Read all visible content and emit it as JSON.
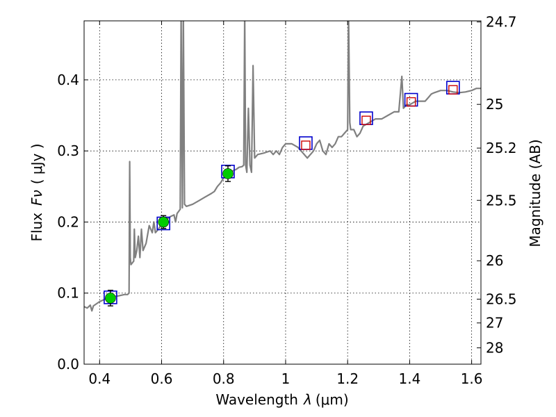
{
  "chart_data": {
    "type": "line",
    "xlabel_main": "Wavelength",
    "xlabel_symbol": "λ",
    "xlabel_unit": "(μm)",
    "ylabel_main": "Flux",
    "ylabel_symbol": "Fν",
    "ylabel_unit": "( μJy )",
    "ylabel_right": "Magnitude (AB)",
    "xlim": [
      0.35,
      1.63
    ],
    "ylim": [
      0.0,
      0.483
    ],
    "x_ticks": [
      0.4,
      0.6,
      0.8,
      1.0,
      1.2,
      1.4,
      1.6
    ],
    "x_tick_labels": [
      "0.4",
      "0.6",
      "0.8",
      "1",
      "1.2",
      "1.4",
      "1.6"
    ],
    "y_ticks": [
      0.0,
      0.1,
      0.2,
      0.3,
      0.4
    ],
    "y_tick_labels": [
      "0.0",
      "0.1",
      "0.2",
      "0.3",
      "0.4"
    ],
    "right_ticks": [
      {
        "label": "24.7",
        "flux": 0.4815
      },
      {
        "label": "25",
        "flux": 0.3655
      },
      {
        "label": "25.2",
        "flux": 0.304
      },
      {
        "label": "25.5",
        "flux": 0.2305
      },
      {
        "label": "26",
        "flux": 0.1455
      },
      {
        "label": "26.5",
        "flux": 0.0915
      },
      {
        "label": "27",
        "flux": 0.058
      },
      {
        "label": "28",
        "flux": 0.023
      }
    ],
    "model_spectrum": {
      "color": "#808080",
      "points": [
        [
          0.35,
          0.081
        ],
        [
          0.36,
          0.079
        ],
        [
          0.37,
          0.083
        ],
        [
          0.375,
          0.075
        ],
        [
          0.38,
          0.082
        ],
        [
          0.39,
          0.085
        ],
        [
          0.4,
          0.088
        ],
        [
          0.41,
          0.09
        ],
        [
          0.42,
          0.092
        ],
        [
          0.43,
          0.094
        ],
        [
          0.44,
          0.095
        ],
        [
          0.46,
          0.096
        ],
        [
          0.48,
          0.098
        ],
        [
          0.49,
          0.098
        ],
        [
          0.495,
          0.1
        ],
        [
          0.497,
          0.285
        ],
        [
          0.499,
          0.15
        ],
        [
          0.501,
          0.14
        ],
        [
          0.51,
          0.145
        ],
        [
          0.512,
          0.19
        ],
        [
          0.515,
          0.15
        ],
        [
          0.52,
          0.16
        ],
        [
          0.525,
          0.18
        ],
        [
          0.53,
          0.15
        ],
        [
          0.535,
          0.19
        ],
        [
          0.54,
          0.16
        ],
        [
          0.55,
          0.17
        ],
        [
          0.56,
          0.195
        ],
        [
          0.57,
          0.185
        ],
        [
          0.575,
          0.2
        ],
        [
          0.58,
          0.185
        ],
        [
          0.59,
          0.19
        ],
        [
          0.6,
          0.198
        ],
        [
          0.61,
          0.202
        ],
        [
          0.62,
          0.205
        ],
        [
          0.63,
          0.208
        ],
        [
          0.64,
          0.21
        ],
        [
          0.645,
          0.2
        ],
        [
          0.65,
          0.212
        ],
        [
          0.655,
          0.215
        ],
        [
          0.66,
          0.218
        ],
        [
          0.663,
          0.495
        ],
        [
          0.667,
          0.22
        ],
        [
          0.67,
          0.495
        ],
        [
          0.674,
          0.225
        ],
        [
          0.68,
          0.222
        ],
        [
          0.7,
          0.225
        ],
        [
          0.72,
          0.23
        ],
        [
          0.74,
          0.235
        ],
        [
          0.76,
          0.24
        ],
        [
          0.77,
          0.243
        ],
        [
          0.78,
          0.25
        ],
        [
          0.79,
          0.255
        ],
        [
          0.8,
          0.262
        ],
        [
          0.82,
          0.27
        ],
        [
          0.83,
          0.272
        ],
        [
          0.84,
          0.274
        ],
        [
          0.85,
          0.277
        ],
        [
          0.86,
          0.278
        ],
        [
          0.865,
          0.28
        ],
        [
          0.868,
          0.495
        ],
        [
          0.871,
          0.28
        ],
        [
          0.875,
          0.27
        ],
        [
          0.88,
          0.36
        ],
        [
          0.885,
          0.28
        ],
        [
          0.89,
          0.27
        ],
        [
          0.895,
          0.42
        ],
        [
          0.9,
          0.29
        ],
        [
          0.91,
          0.295
        ],
        [
          0.93,
          0.297
        ],
        [
          0.95,
          0.3
        ],
        [
          0.96,
          0.295
        ],
        [
          0.97,
          0.3
        ],
        [
          0.98,
          0.295
        ],
        [
          0.99,
          0.305
        ],
        [
          1.0,
          0.31
        ],
        [
          1.02,
          0.31
        ],
        [
          1.04,
          0.305
        ],
        [
          1.05,
          0.3
        ],
        [
          1.07,
          0.29
        ],
        [
          1.09,
          0.3
        ],
        [
          1.1,
          0.31
        ],
        [
          1.11,
          0.315
        ],
        [
          1.12,
          0.3
        ],
        [
          1.13,
          0.295
        ],
        [
          1.14,
          0.31
        ],
        [
          1.15,
          0.305
        ],
        [
          1.16,
          0.31
        ],
        [
          1.17,
          0.32
        ],
        [
          1.18,
          0.32
        ],
        [
          1.19,
          0.325
        ],
        [
          1.2,
          0.33
        ],
        [
          1.203,
          0.495
        ],
        [
          1.207,
          0.34
        ],
        [
          1.21,
          0.33
        ],
        [
          1.22,
          0.33
        ],
        [
          1.23,
          0.32
        ],
        [
          1.24,
          0.325
        ],
        [
          1.25,
          0.335
        ],
        [
          1.27,
          0.34
        ],
        [
          1.29,
          0.345
        ],
        [
          1.31,
          0.345
        ],
        [
          1.33,
          0.35
        ],
        [
          1.35,
          0.355
        ],
        [
          1.365,
          0.355
        ],
        [
          1.375,
          0.405
        ],
        [
          1.38,
          0.36
        ],
        [
          1.39,
          0.365
        ],
        [
          1.4,
          0.365
        ],
        [
          1.42,
          0.37
        ],
        [
          1.44,
          0.37
        ],
        [
          1.45,
          0.37
        ],
        [
          1.46,
          0.375
        ],
        [
          1.47,
          0.38
        ],
        [
          1.48,
          0.382
        ],
        [
          1.5,
          0.385
        ],
        [
          1.52,
          0.385
        ],
        [
          1.54,
          0.383
        ],
        [
          1.56,
          0.382
        ],
        [
          1.58,
          0.383
        ],
        [
          1.6,
          0.385
        ],
        [
          1.615,
          0.388
        ],
        [
          1.63,
          0.388
        ]
      ]
    },
    "observed_points": {
      "color": "#00cc00",
      "points": [
        {
          "x": 0.435,
          "y": 0.093,
          "err": 0.011
        },
        {
          "x": 0.606,
          "y": 0.2,
          "err": 0.009
        },
        {
          "x": 0.814,
          "y": 0.268,
          "err": 0.011
        }
      ]
    },
    "model_photometry_blue": {
      "color": "#0000cc",
      "points": [
        {
          "x": 0.435,
          "y": 0.094
        },
        {
          "x": 0.606,
          "y": 0.198
        },
        {
          "x": 0.814,
          "y": 0.271
        },
        {
          "x": 1.065,
          "y": 0.311
        },
        {
          "x": 1.26,
          "y": 0.346
        },
        {
          "x": 1.405,
          "y": 0.372
        },
        {
          "x": 1.54,
          "y": 0.389
        }
      ]
    },
    "model_photometry_red": {
      "color": "#cc0000",
      "points": [
        {
          "x": 1.065,
          "y": 0.308
        },
        {
          "x": 1.26,
          "y": 0.343
        },
        {
          "x": 1.405,
          "y": 0.369
        },
        {
          "x": 1.54,
          "y": 0.386
        }
      ]
    }
  }
}
